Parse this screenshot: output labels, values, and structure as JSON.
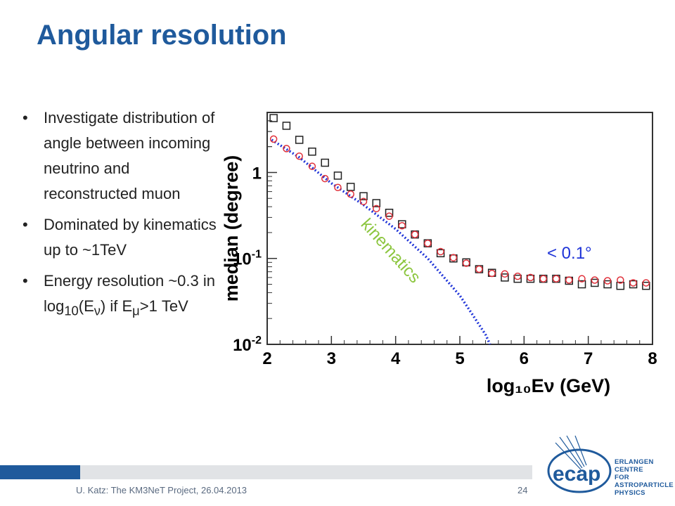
{
  "slide": {
    "title": "Angular resolution",
    "footer": "U. Katz: The KM3NeT Project, 26.04.2013",
    "page_number": "24"
  },
  "bullets": [
    {
      "text": "Investigate distribution of angle between incoming neutrino and reconstructed muon"
    },
    {
      "text": "Dominated by kinematics up to ~1TeV"
    },
    {
      "text_prefix": "Energy resolution ~0.3 in log",
      "sub1": "10",
      "mid": "(E",
      "sub2": "ν",
      "mid2": ") if E",
      "sub3": "μ",
      "suffix": ">1 TeV"
    }
  ],
  "logo": {
    "name": "ecap",
    "lines": [
      "ERLANGEN CENTRE",
      "FOR ASTROPARTICLE",
      "PHYSICS"
    ]
  },
  "colors": {
    "title": "#1f5a9c",
    "series_black": "#222222",
    "series_red": "#e0303a",
    "kinematics_line": "#1f34d8",
    "kinematics_label": "#8cc63f",
    "annotation": "#1f34d8"
  },
  "chart_data": {
    "type": "scatter",
    "xlabel": "log₁₀Eν (GeV)",
    "ylabel": "median (degree)",
    "xlim": [
      2,
      8
    ],
    "ylim": [
      0.01,
      5
    ],
    "yscale": "log",
    "x_ticks": [
      "2",
      "3",
      "4",
      "5",
      "6",
      "7",
      "8"
    ],
    "y_ticks": [
      {
        "value": 1,
        "label": "1"
      },
      {
        "value": 0.1,
        "label": "10",
        "exp": "-1"
      },
      {
        "value": 0.01,
        "label": "10",
        "exp": "-2"
      }
    ],
    "series": [
      {
        "marker": "open-square",
        "color": "#222222",
        "x": [
          2.1,
          2.3,
          2.5,
          2.7,
          2.9,
          3.1,
          3.3,
          3.5,
          3.7,
          3.9,
          4.1,
          4.3,
          4.5,
          4.7,
          4.9,
          5.1,
          5.3,
          5.5,
          5.7,
          5.9,
          6.1,
          6.3,
          6.5,
          6.7,
          6.9,
          7.1,
          7.3,
          7.5,
          7.7,
          7.9
        ],
        "y": [
          4.3,
          3.5,
          2.4,
          1.75,
          1.3,
          0.92,
          0.68,
          0.53,
          0.44,
          0.34,
          0.25,
          0.19,
          0.15,
          0.115,
          0.1,
          0.09,
          0.075,
          0.068,
          0.06,
          0.058,
          0.058,
          0.058,
          0.058,
          0.055,
          0.05,
          0.052,
          0.05,
          0.048,
          0.05,
          0.048
        ]
      },
      {
        "marker": "open-circle",
        "color": "#e0303a",
        "x": [
          2.1,
          2.3,
          2.5,
          2.7,
          2.9,
          3.1,
          3.3,
          3.5,
          3.7,
          3.9,
          4.1,
          4.3,
          4.5,
          4.7,
          4.9,
          5.1,
          5.3,
          5.5,
          5.7,
          5.9,
          6.1,
          6.3,
          6.5,
          6.7,
          6.9,
          7.1,
          7.3,
          7.5,
          7.7,
          7.9
        ],
        "y": [
          2.45,
          1.9,
          1.55,
          1.18,
          0.85,
          0.67,
          0.56,
          0.46,
          0.38,
          0.31,
          0.24,
          0.19,
          0.15,
          0.12,
          0.102,
          0.088,
          0.075,
          0.067,
          0.066,
          0.062,
          0.06,
          0.058,
          0.058,
          0.056,
          0.058,
          0.056,
          0.055,
          0.056,
          0.052,
          0.052
        ]
      }
    ],
    "kinematics_line": {
      "label": "kinematics",
      "style": "dotted",
      "x": [
        2.07,
        2.5,
        3.0,
        3.5,
        4.0,
        4.5,
        4.8,
        5.0,
        5.2,
        5.4,
        5.47
      ],
      "y": [
        2.4,
        1.5,
        0.75,
        0.42,
        0.22,
        0.1,
        0.055,
        0.037,
        0.022,
        0.013,
        0.01
      ]
    },
    "annotation": "< 0.1°"
  }
}
